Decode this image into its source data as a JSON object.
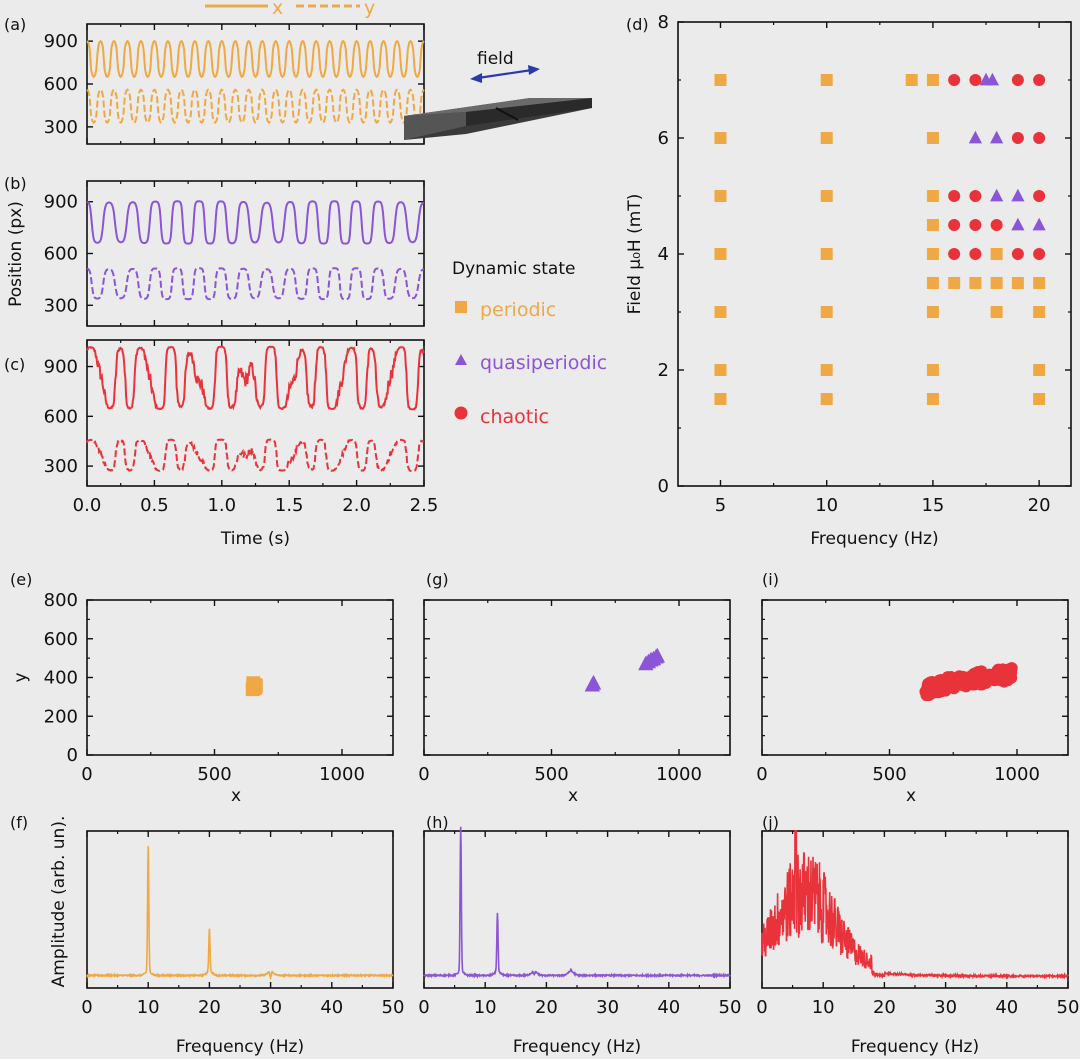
{
  "colors": {
    "periodic": "#f0a844",
    "quasiperiodic": "#8a55d6",
    "chaotic": "#e8333a",
    "axis": "#111111",
    "background": "#ebebeb"
  },
  "panel_labels": {
    "a": "(a)",
    "b": "(b)",
    "c": "(c)",
    "d": "(d)",
    "e": "(e)",
    "f": "(f)",
    "g": "(g)",
    "h": "(h)",
    "i": "(i)",
    "j": "(j)"
  },
  "legend": {
    "title": "Dynamic state",
    "items": [
      {
        "label": "periodic",
        "marker": "square",
        "color": "#f0a844"
      },
      {
        "label": "quasiperiodic",
        "marker": "triangle",
        "color": "#8a55d6"
      },
      {
        "label": "chaotic",
        "marker": "circle",
        "color": "#e8333a"
      }
    ],
    "x_label": "x",
    "y_label": "y"
  },
  "inset": {
    "label": "field",
    "icon": "magnet-bar-with-double-arrow"
  },
  "chart_data": [
    {
      "id": "a",
      "type": "line",
      "title": "",
      "xlabel": "",
      "ylabel": "",
      "xlim": [
        0,
        2.5
      ],
      "ylim": [
        180,
        1020
      ],
      "yticks": [
        300,
        600,
        900
      ],
      "xticks": [
        0,
        0.5,
        1.0,
        1.5,
        2.0,
        2.5
      ],
      "series": [
        {
          "name": "x",
          "style": "solid",
          "color": "#f0a844",
          "kind": "periodic",
          "freq_hz": 10,
          "min": 650,
          "max": 900
        },
        {
          "name": "y",
          "style": "dashed",
          "color": "#f0a844",
          "kind": "periodic",
          "freq_hz": 10,
          "min": 330,
          "max": 560
        }
      ]
    },
    {
      "id": "b",
      "type": "line",
      "title": "",
      "xlabel": "",
      "ylabel": "Position (px)",
      "xlim": [
        0,
        2.5
      ],
      "ylim": [
        180,
        1020
      ],
      "yticks": [
        300,
        600,
        900
      ],
      "xticks": [
        0,
        0.5,
        1.0,
        1.5,
        2.0,
        2.5
      ],
      "series": [
        {
          "name": "x",
          "style": "solid",
          "color": "#8a55d6",
          "kind": "quasiperiodic",
          "freq_hz": 6,
          "min": 650,
          "max": 910
        },
        {
          "name": "y",
          "style": "dashed",
          "color": "#8a55d6",
          "kind": "quasiperiodic",
          "freq_hz": 6,
          "min": 330,
          "max": 520
        }
      ]
    },
    {
      "id": "c",
      "type": "line",
      "title": "",
      "xlabel": "Time (s)",
      "ylabel": "",
      "xlim": [
        0,
        2.5
      ],
      "ylim": [
        180,
        1060
      ],
      "yticks": [
        300,
        600,
        900
      ],
      "xticks": [
        0,
        0.5,
        1.0,
        1.5,
        2.0,
        2.5
      ],
      "xticklabels": [
        "0.0",
        "0.5",
        "1.0",
        "1.5",
        "2.0",
        "2.5"
      ],
      "series": [
        {
          "name": "x",
          "style": "solid",
          "color": "#e8333a",
          "kind": "chaotic",
          "min": 640,
          "max": 1020
        },
        {
          "name": "y",
          "style": "dashed",
          "color": "#e8333a",
          "kind": "chaotic",
          "min": 270,
          "max": 460
        }
      ]
    },
    {
      "id": "d",
      "type": "scatter",
      "title": "",
      "xlabel": "Frequency (Hz)",
      "ylabel": "Field μ₀H (mT)",
      "xlim": [
        3,
        21.5
      ],
      "ylim": [
        0,
        8
      ],
      "xticks": [
        5,
        10,
        15,
        20
      ],
      "yticks": [
        0,
        2,
        4,
        6,
        8
      ],
      "series": [
        {
          "name": "periodic",
          "marker": "square",
          "color": "#f0a844",
          "points": [
            [
              5,
              1.5
            ],
            [
              5,
              2
            ],
            [
              5,
              3
            ],
            [
              5,
              4
            ],
            [
              5,
              5
            ],
            [
              5,
              6
            ],
            [
              5,
              7
            ],
            [
              10,
              1.5
            ],
            [
              10,
              2
            ],
            [
              10,
              3
            ],
            [
              10,
              4
            ],
            [
              10,
              5
            ],
            [
              10,
              6
            ],
            [
              10,
              7
            ],
            [
              14,
              7
            ],
            [
              15,
              7
            ],
            [
              15,
              6
            ],
            [
              15,
              5
            ],
            [
              15,
              4.5
            ],
            [
              15,
              4
            ],
            [
              15,
              3.5
            ],
            [
              15,
              3
            ],
            [
              15,
              2
            ],
            [
              15,
              1.5
            ],
            [
              16,
              3.5
            ],
            [
              17,
              3.5
            ],
            [
              18,
              3.5
            ],
            [
              19,
              3.5
            ],
            [
              20,
              3.5
            ],
            [
              18,
              4
            ],
            [
              18,
              3
            ],
            [
              20,
              3
            ],
            [
              20,
              2
            ],
            [
              20,
              1.5
            ]
          ]
        },
        {
          "name": "quasiperiodic",
          "marker": "triangle",
          "color": "#8a55d6",
          "points": [
            [
              17.5,
              7
            ],
            [
              17.8,
              7
            ],
            [
              17,
              6
            ],
            [
              18,
              6
            ],
            [
              18,
              5
            ],
            [
              19,
              5
            ],
            [
              19,
              4.5
            ],
            [
              20,
              4.5
            ]
          ]
        },
        {
          "name": "chaotic",
          "marker": "circle",
          "color": "#e8333a",
          "points": [
            [
              16,
              7
            ],
            [
              17,
              7
            ],
            [
              19,
              7
            ],
            [
              20,
              7
            ],
            [
              19,
              6
            ],
            [
              20,
              6
            ],
            [
              16,
              5
            ],
            [
              17,
              5
            ],
            [
              20,
              5
            ],
            [
              16,
              4.5
            ],
            [
              17,
              4.5
            ],
            [
              18,
              4.5
            ],
            [
              16,
              4
            ],
            [
              17,
              4
            ],
            [
              19,
              4
            ],
            [
              20,
              4
            ]
          ]
        }
      ]
    },
    {
      "id": "e",
      "type": "scatter",
      "title": "",
      "xlabel": "x",
      "ylabel": "y",
      "xlim": [
        0,
        1200
      ],
      "ylim": [
        0,
        800
      ],
      "xticks": [
        0,
        500,
        1000
      ],
      "yticks": [
        0,
        200,
        400,
        600,
        800
      ],
      "series": [
        {
          "name": "periodic",
          "marker": "square",
          "color": "#f0a844",
          "points": [
            [
              650,
              340
            ],
            [
              655,
              350
            ],
            [
              660,
              360
            ],
            [
              652,
              370
            ],
            [
              658,
              345
            ],
            [
              662,
              355
            ]
          ]
        }
      ]
    },
    {
      "id": "g",
      "type": "scatter",
      "title": "",
      "xlabel": "x",
      "ylabel": "",
      "xlim": [
        0,
        1200
      ],
      "ylim": [
        0,
        800
      ],
      "xticks": [
        0,
        500,
        1000
      ],
      "yticks": [
        0,
        200,
        400,
        600,
        800
      ],
      "series": [
        {
          "name": "quasiperiodic",
          "marker": "triangle",
          "color": "#8a55d6",
          "points": [
            [
              660,
              360
            ],
            [
              665,
              370
            ],
            [
              870,
              470
            ],
            [
              880,
              480
            ],
            [
              890,
              490
            ],
            [
              900,
              495
            ],
            [
              910,
              505
            ],
            [
              915,
              510
            ]
          ]
        }
      ]
    },
    {
      "id": "i",
      "type": "scatter",
      "title": "",
      "xlabel": "x",
      "ylabel": "",
      "xlim": [
        0,
        1200
      ],
      "ylim": [
        0,
        800
      ],
      "xticks": [
        0,
        500,
        1000
      ],
      "yticks": [
        0,
        200,
        400,
        600,
        800
      ],
      "series": [
        {
          "name": "chaotic",
          "marker": "circle",
          "color": "#e8333a",
          "kind": "cloud",
          "x_range": [
            640,
            990
          ],
          "y_range": [
            300,
            460
          ]
        }
      ]
    },
    {
      "id": "f",
      "type": "line",
      "title": "",
      "xlabel": "Frequency (Hz)",
      "ylabel": "Amplitude (arb. un).",
      "xlim": [
        0,
        50
      ],
      "ylim": [
        0,
        1
      ],
      "xticks": [
        0,
        10,
        20,
        30,
        40,
        50
      ],
      "series": [
        {
          "name": "spectrum",
          "color": "#f0a844",
          "peaks": [
            [
              10,
              0.88
            ],
            [
              20,
              0.35
            ],
            [
              30,
              0.04
            ]
          ],
          "baseline": 0.08
        }
      ]
    },
    {
      "id": "h",
      "type": "line",
      "title": "",
      "xlabel": "Frequency (Hz)",
      "ylabel": "",
      "xlim": [
        0,
        50
      ],
      "ylim": [
        0,
        1
      ],
      "xticks": [
        0,
        10,
        20,
        30,
        40,
        50
      ],
      "series": [
        {
          "name": "spectrum",
          "color": "#8a55d6",
          "peaks": [
            [
              6,
              1.0
            ],
            [
              12,
              0.45
            ],
            [
              18,
              0.06
            ],
            [
              24,
              0.09
            ]
          ],
          "baseline": 0.08
        }
      ]
    },
    {
      "id": "j",
      "type": "line",
      "title": "",
      "xlabel": "Frequency (Hz)",
      "ylabel": "",
      "xlim": [
        0,
        50
      ],
      "ylim": [
        0,
        1
      ],
      "xticks": [
        0,
        10,
        20,
        30,
        40,
        50
      ],
      "series": [
        {
          "name": "spectrum",
          "color": "#e8333a",
          "kind": "broadband",
          "peak_x": 5.5,
          "peak_y": 1.0,
          "baseline": 0.07
        }
      ]
    }
  ]
}
